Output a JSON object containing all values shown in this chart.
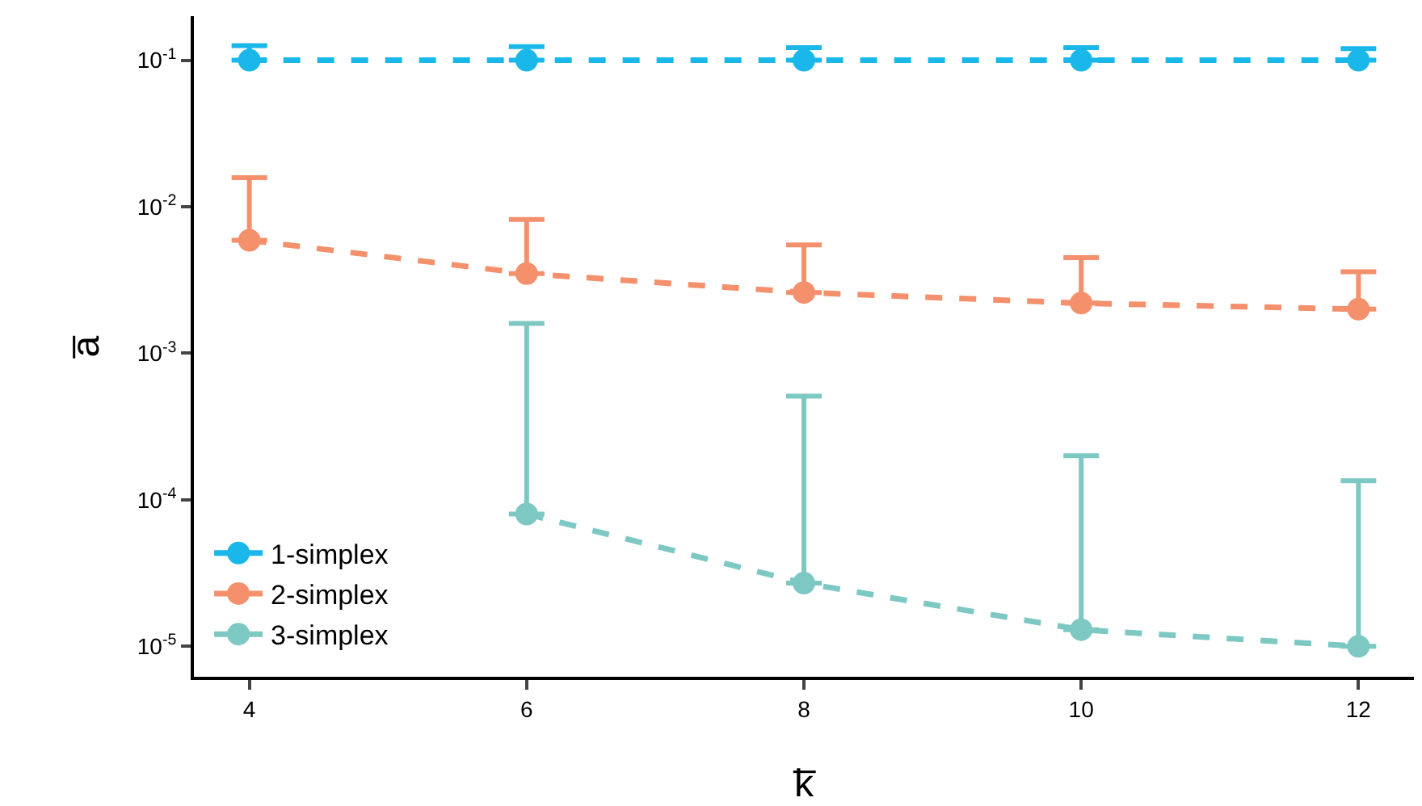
{
  "chart_data": {
    "type": "line",
    "xlabel": "k̅",
    "ylabel": "a̅",
    "x": [
      4,
      6,
      8,
      10,
      12
    ],
    "log": "y",
    "grid": false,
    "legend": "bottom left",
    "marker": "circle",
    "line_style": "dashed",
    "xlim": [
      3.6,
      12.4
    ],
    "xticks": [
      4,
      6,
      8,
      10,
      12
    ],
    "ylim": [
      6.2e-06,
      0.2
    ],
    "yticks": [
      {
        "value": 1e-05,
        "label": "10$^{-5}$"
      },
      {
        "value": 0.0001,
        "label": "10$^{-4}$"
      },
      {
        "value": 0.001,
        "label": "10$^{-3}$"
      },
      {
        "value": 0.01,
        "label": "10$^{-2}$"
      },
      {
        "value": 0.1,
        "label": "10$^{-1}$"
      }
    ],
    "series": [
      {
        "name": "1-simplex",
        "color": "#1ab7ea",
        "values": [
          0.1,
          0.1,
          0.1,
          0.1,
          0.1
        ],
        "errors": [
          [
            0.1,
            0.126
          ],
          [
            0.1,
            0.124
          ],
          [
            0.1,
            0.122
          ],
          [
            0.1,
            0.122
          ],
          [
            0.1,
            0.12
          ]
        ]
      },
      {
        "name": "2-simplex",
        "color": "#f4906c",
        "values": [
          0.0059,
          0.0035,
          0.0026,
          0.0022,
          0.002
        ],
        "errors": [
          [
            0.0059,
            0.0158
          ],
          [
            0.0035,
            0.0082
          ],
          [
            0.0026,
            0.0055
          ],
          [
            0.0022,
            0.0045
          ],
          [
            0.002,
            0.0036
          ]
        ]
      },
      {
        "name": "3-simplex",
        "color": "#7ec8c4",
        "values": [
          null,
          8e-05,
          2.7e-05,
          1.3e-05,
          1e-05
        ],
        "errors": [
          null,
          [
            8e-05,
            0.0016
          ],
          [
            2.7e-05,
            0.00051
          ],
          [
            1.3e-05,
            0.0002
          ],
          [
            1e-05,
            0.000135
          ]
        ]
      }
    ]
  }
}
